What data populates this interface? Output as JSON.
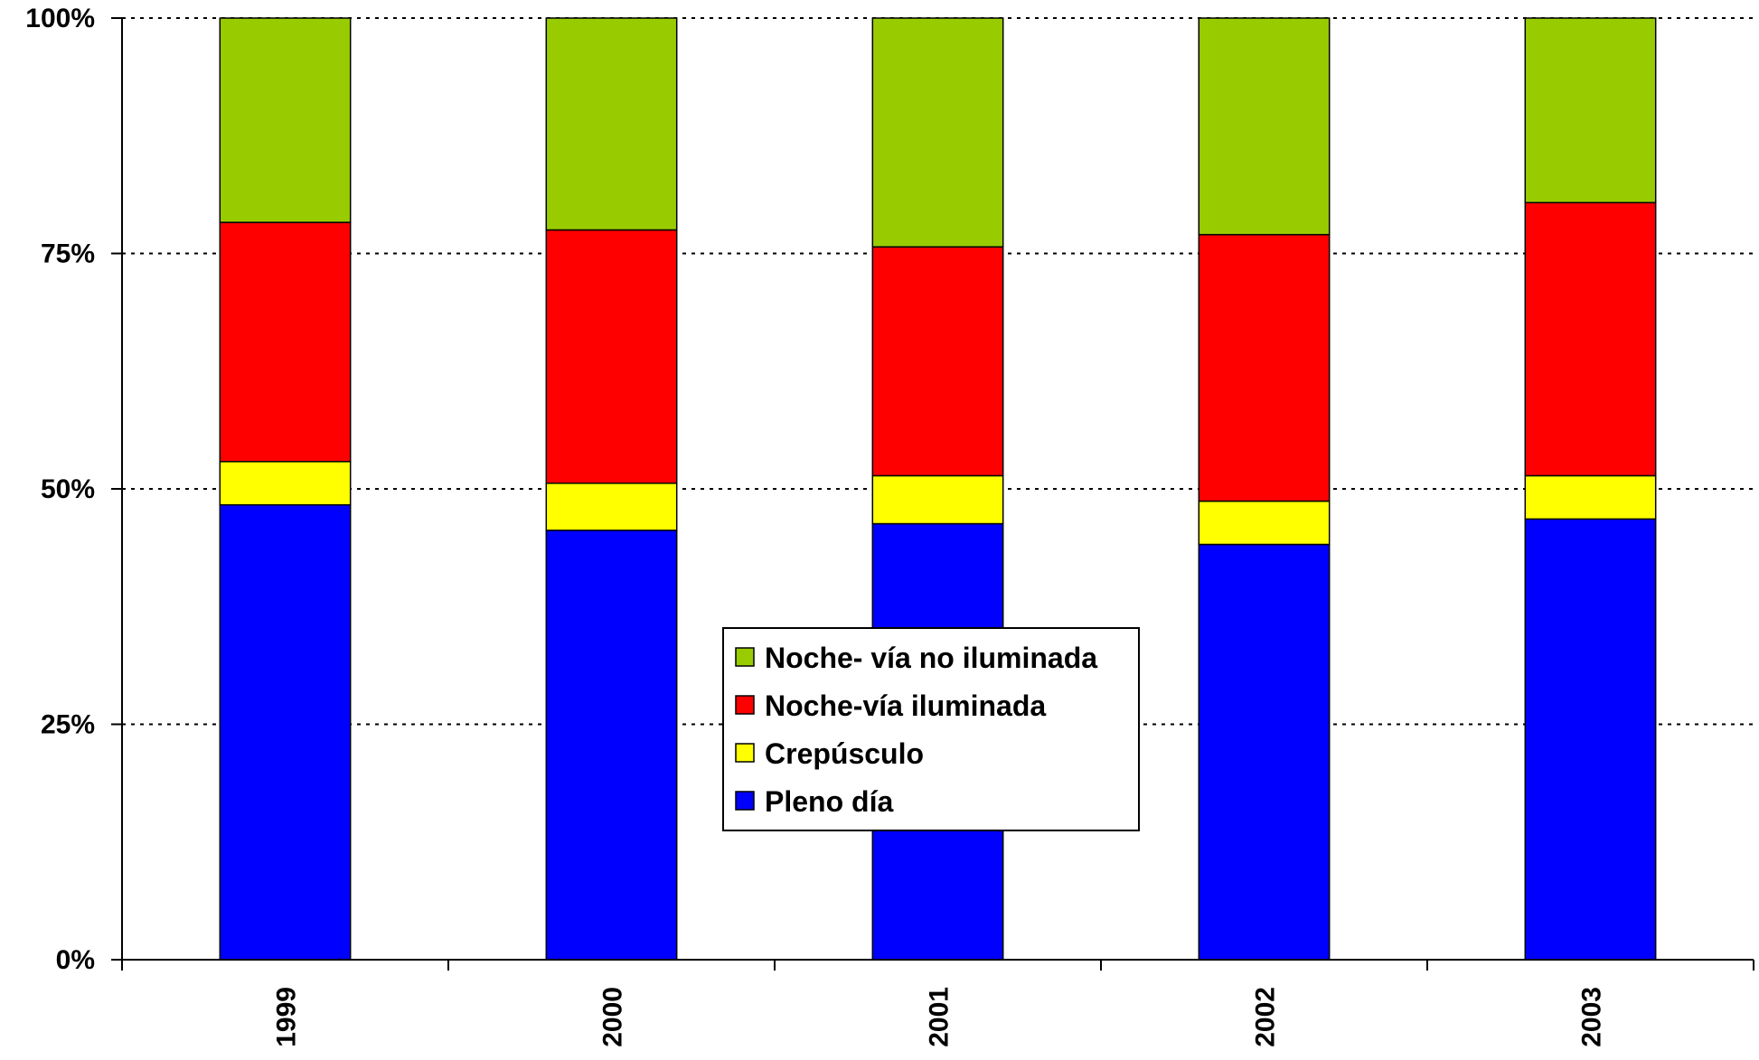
{
  "chart_data": {
    "type": "bar",
    "stacked": true,
    "percent": true,
    "categories": [
      "1999",
      "2000",
      "2001",
      "2002",
      "2003"
    ],
    "series": [
      {
        "name": "Pleno día",
        "color": "#0000FF",
        "values": [
          48.3,
          45.6,
          46.3,
          44.1,
          46.8
        ]
      },
      {
        "name": "Crepúsculo",
        "color": "#FFFF00",
        "values": [
          4.6,
          5.0,
          5.1,
          4.6,
          4.6
        ]
      },
      {
        "name": "Noche-vía iluminada",
        "color": "#FF0000",
        "values": [
          25.4,
          26.9,
          24.3,
          28.3,
          29.0
        ]
      },
      {
        "name": "Noche- vía no iluminada",
        "color": "#99CC00",
        "values": [
          21.7,
          22.5,
          24.3,
          23.0,
          19.6
        ]
      }
    ],
    "y_ticks": [
      "0%",
      "25%",
      "50%",
      "75%",
      "100%"
    ],
    "ylim": [
      0,
      100
    ],
    "grid": "horizontal dotted",
    "legend_order": [
      "Noche- vía no iluminada",
      "Noche-vía iluminada",
      "Crepúsculo",
      "Pleno día"
    ],
    "legend_position": "center"
  }
}
